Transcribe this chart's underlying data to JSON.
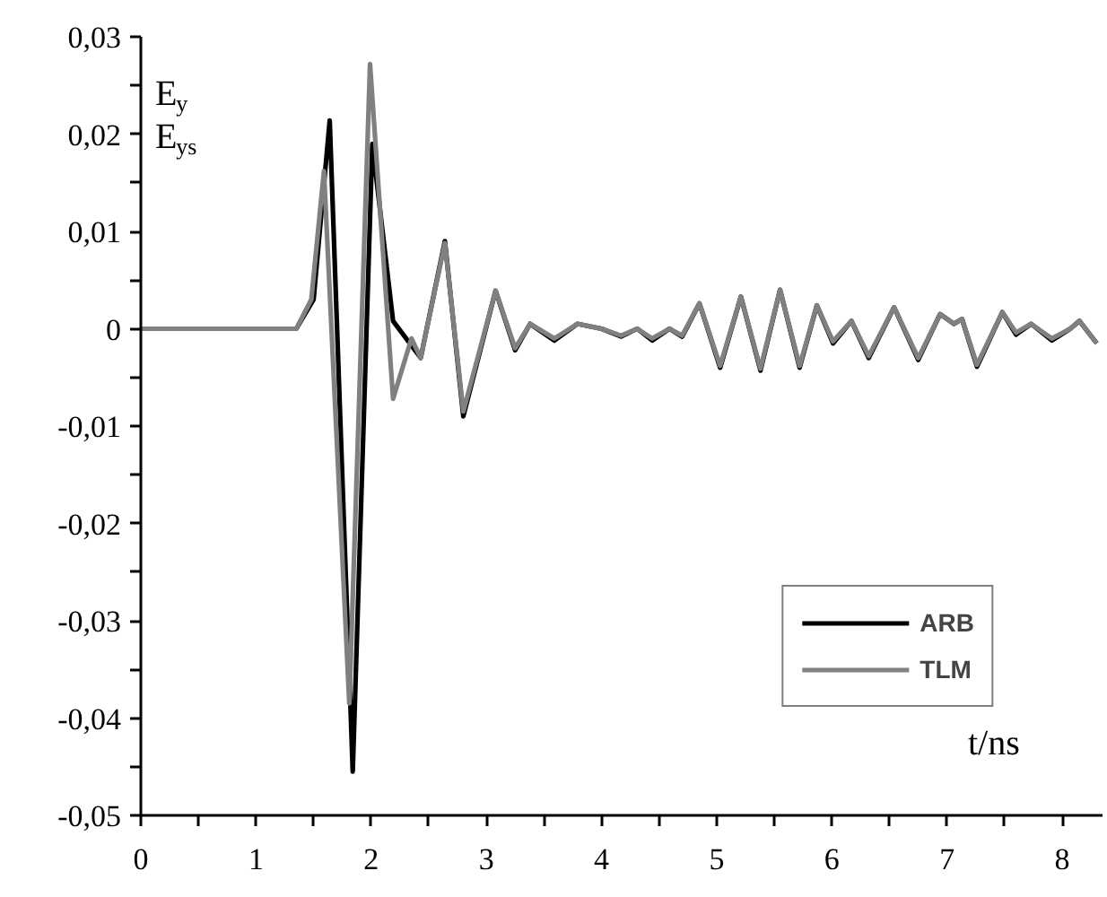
{
  "chart_data": {
    "type": "line",
    "xlabel": "t/ns",
    "ylabel": "E$_{y}$\nE$_{ys}$",
    "xlim": [
      0,
      8.35
    ],
    "ylim": [
      -0.05,
      0.03
    ],
    "xticks": [
      0,
      {
        "value": 0.5,
        "label": null
      },
      1,
      {
        "value": 1.5,
        "label": null
      },
      2,
      {
        "value": 2.5,
        "label": null
      },
      3,
      {
        "value": 3.5,
        "label": null
      },
      4,
      {
        "value": 4.5,
        "label": null
      },
      5,
      {
        "value": 5.5,
        "label": null
      },
      6,
      {
        "value": 6.5,
        "label": null
      },
      7,
      {
        "value": 7.5,
        "label": null
      },
      8
    ],
    "yticks": [
      {
        "value": -0.05,
        "label": "-0,05"
      },
      {
        "value": -0.045,
        "label": null
      },
      {
        "value": -0.04,
        "label": "-0,04"
      },
      {
        "value": -0.035,
        "label": null
      },
      {
        "value": -0.03,
        "label": "-0,03"
      },
      {
        "value": -0.025,
        "label": null
      },
      {
        "value": -0.02,
        "label": "-0,02"
      },
      {
        "value": -0.015,
        "label": null
      },
      {
        "value": -0.01,
        "label": "-0,01"
      },
      {
        "value": -0.005,
        "label": null
      },
      {
        "value": 0,
        "label": "0"
      },
      {
        "value": 0.005,
        "label": null
      },
      {
        "value": 0.01,
        "label": "0,01"
      },
      {
        "value": 0.015,
        "label": null
      },
      {
        "value": 0.02,
        "label": "0,02"
      },
      {
        "value": 0.025,
        "label": null
      },
      {
        "value": 0.03,
        "label": "0,03"
      }
    ],
    "grid": false,
    "legend": "bottom right",
    "marker": "none",
    "line_style": "solid",
    "series": [
      {
        "name": "ARB",
        "color": "#000000",
        "x": [
          0,
          1.35,
          1.5,
          1.64,
          1.84,
          2.01,
          2.19,
          2.43,
          2.64,
          2.8,
          3.08,
          3.25,
          3.38,
          3.59,
          3.79,
          4.0,
          4.17,
          4.31,
          4.44,
          4.59,
          4.7,
          4.85,
          5.03,
          5.21,
          5.38,
          5.55,
          5.72,
          5.87,
          6.01,
          6.17,
          6.32,
          6.54,
          6.75,
          6.94,
          7.06,
          7.13,
          7.26,
          7.48,
          7.6,
          7.73,
          7.91,
          8.07,
          8.15,
          8.3
        ],
        "values": [
          0,
          0,
          0.003,
          0.0214,
          -0.0455,
          0.019,
          0.0008,
          -0.003,
          0.009,
          -0.009,
          0.0039,
          -0.0022,
          0.0005,
          -0.0012,
          0.0005,
          0,
          -0.0008,
          0,
          -0.0012,
          0,
          -0.0008,
          0.0026,
          -0.004,
          0.0033,
          -0.0043,
          0.004,
          -0.004,
          0.0024,
          -0.0015,
          0.0008,
          -0.003,
          0.0022,
          -0.0032,
          0.0015,
          0.0005,
          0.001,
          -0.0039,
          0.0017,
          -0.0006,
          0.0005,
          -0.0012,
          0,
          0.0008,
          -0.0015
        ]
      },
      {
        "name": "TLM",
        "color": "#808080",
        "x": [
          0,
          1.35,
          1.48,
          1.59,
          1.81,
          1.99,
          2.19,
          2.35,
          2.43,
          2.64,
          2.8,
          3.08,
          3.25,
          3.38,
          3.59,
          3.79,
          4.0,
          4.17,
          4.31,
          4.44,
          4.59,
          4.7,
          4.85,
          5.03,
          5.21,
          5.38,
          5.55,
          5.72,
          5.87,
          6.01,
          6.17,
          6.32,
          6.54,
          6.75,
          6.94,
          7.06,
          7.13,
          7.26,
          7.48,
          7.6,
          7.73,
          7.91,
          8.07,
          8.15,
          8.3
        ],
        "values": [
          0,
          0,
          0.003,
          0.0162,
          -0.0385,
          0.0272,
          -0.0072,
          -0.001,
          -0.003,
          0.0088,
          -0.0085,
          0.0039,
          -0.002,
          0.0005,
          -0.001,
          0.0005,
          0,
          -0.0007,
          0,
          -0.001,
          0,
          -0.0007,
          0.0026,
          -0.0038,
          0.0033,
          -0.0041,
          0.004,
          -0.0038,
          0.0024,
          -0.0013,
          0.0008,
          -0.0028,
          0.0022,
          -0.003,
          0.0015,
          0.0005,
          0.001,
          -0.0037,
          0.0017,
          -0.0004,
          0.0005,
          -0.001,
          0,
          0.0008,
          -0.0015
        ]
      }
    ]
  }
}
